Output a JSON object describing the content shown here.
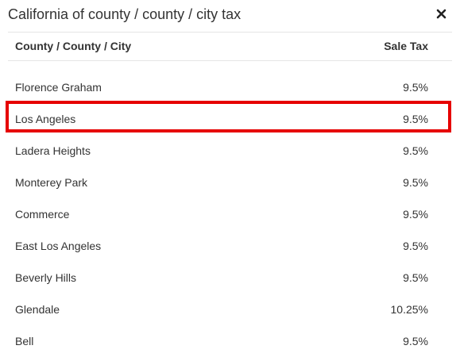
{
  "modal": {
    "title": "California of county / county / city tax",
    "close_icon": "close-icon"
  },
  "table": {
    "headers": {
      "location": "County / County / City",
      "tax": "Sale Tax"
    },
    "rows": [
      {
        "location": "Florence Graham",
        "tax": "9.5%"
      },
      {
        "location": "Los Angeles",
        "tax": "9.5%"
      },
      {
        "location": "Ladera Heights",
        "tax": "9.5%"
      },
      {
        "location": "Monterey Park",
        "tax": "9.5%"
      },
      {
        "location": "Commerce",
        "tax": "9.5%"
      },
      {
        "location": "East Los Angeles",
        "tax": "9.5%"
      },
      {
        "location": "Beverly Hills",
        "tax": "9.5%"
      },
      {
        "location": "Glendale",
        "tax": "10.25%"
      },
      {
        "location": "Bell",
        "tax": "9.5%"
      }
    ],
    "highlighted_row": "Los Angeles"
  },
  "colors": {
    "text": "#333333",
    "divider": "#e5e5e5",
    "highlight": "#e60000"
  }
}
